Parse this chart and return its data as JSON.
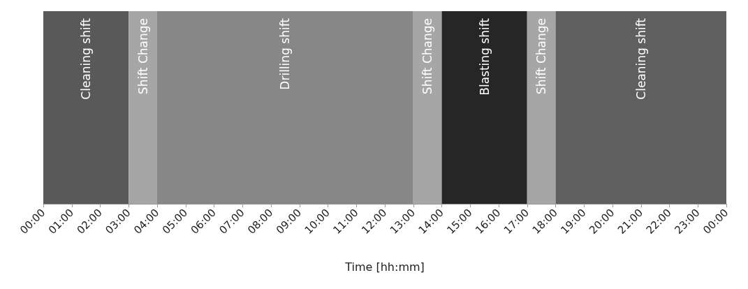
{
  "chart_data": {
    "type": "bar",
    "orientation": "horizontal",
    "stacked": true,
    "categories": [
      null
    ],
    "xlabel": "Time [hh:mm]",
    "xlim": [
      0,
      24
    ],
    "xticks": [
      {
        "value": 0,
        "label": "00:00"
      },
      {
        "value": 1,
        "label": "01:00"
      },
      {
        "value": 2,
        "label": "02:00"
      },
      {
        "value": 3,
        "label": "03:00"
      },
      {
        "value": 4,
        "label": "04:00"
      },
      {
        "value": 5,
        "label": "05:00"
      },
      {
        "value": 6,
        "label": "06:00"
      },
      {
        "value": 7,
        "label": "07:00"
      },
      {
        "value": 8,
        "label": "08:00"
      },
      {
        "value": 9,
        "label": "09:00"
      },
      {
        "value": 10,
        "label": "10:00"
      },
      {
        "value": 11,
        "label": "11:00"
      },
      {
        "value": 12,
        "label": "12:00"
      },
      {
        "value": 13,
        "label": "13:00"
      },
      {
        "value": 14,
        "label": "14:00"
      },
      {
        "value": 15,
        "label": "15:00"
      },
      {
        "value": 16,
        "label": "16:00"
      },
      {
        "value": 17,
        "label": "17:00"
      },
      {
        "value": 18,
        "label": "18:00"
      },
      {
        "value": 19,
        "label": "19:00"
      },
      {
        "value": 20,
        "label": "20:00"
      },
      {
        "value": 21,
        "label": "21:00"
      },
      {
        "value": 22,
        "label": "22:00"
      },
      {
        "value": 23,
        "label": "23:00"
      },
      {
        "value": 24,
        "label": "00:00"
      }
    ],
    "series": [
      {
        "name": "Cleaning shift",
        "color": "#595959",
        "values": [
          3
        ]
      },
      {
        "name": "Shift Change",
        "color": "#a6a6a6",
        "values": [
          1
        ]
      },
      {
        "name": "Drilling shift",
        "color": "#878787",
        "values": [
          9
        ]
      },
      {
        "name": "Shift Change",
        "color": "#a6a6a6",
        "values": [
          1
        ]
      },
      {
        "name": "Blasting shift",
        "color": "#262626",
        "values": [
          3
        ]
      },
      {
        "name": "Shift Change",
        "color": "#a6a6a6",
        "values": [
          1
        ]
      },
      {
        "name": "Cleaning shift",
        "color": "#5f5f5f",
        "values": [
          6
        ]
      }
    ],
    "grid": false,
    "legend": false
  }
}
